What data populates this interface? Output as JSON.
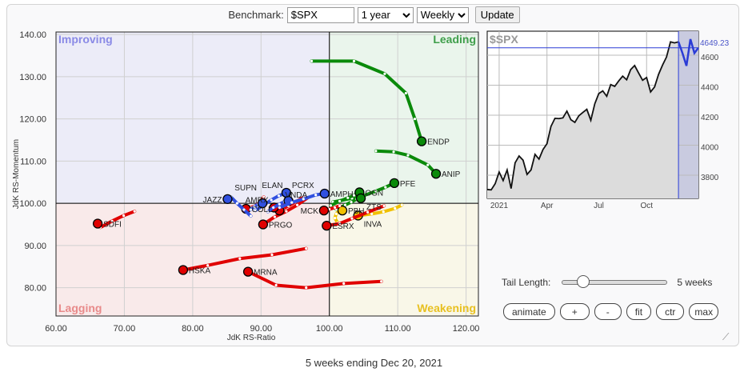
{
  "toolbar": {
    "benchmark_label": "Benchmark:",
    "benchmark_value": "$SPX",
    "period": "1 year",
    "frequency": "Weekly",
    "update_label": "Update"
  },
  "controls": {
    "tail_label": "Tail Length:",
    "tail_value": "5 weeks",
    "tail_fraction": 0.15,
    "buttons": [
      "animate",
      "+",
      "-",
      "fit",
      "ctr",
      "max"
    ]
  },
  "caption": "5 weeks ending Dec 20, 2021",
  "colors": {
    "leading": "#0a8a0a",
    "weakening": "#f0c000",
    "lagging": "#e00000",
    "improving": "#3050e0"
  },
  "chart_data": [
    {
      "type": "scatter",
      "title": "Relative Rotation Graph",
      "xlabel": "JdK RS-Ratio",
      "ylabel": "JdK RS-Momentum",
      "xlim": [
        60,
        121.8
      ],
      "ylim": [
        73.3,
        140.6
      ],
      "xticks": [
        60,
        70,
        80,
        90,
        100,
        110,
        120
      ],
      "yticks": [
        80,
        90,
        100,
        110,
        120,
        130,
        140
      ],
      "tick_labels_x": [
        "60.00",
        "70.00",
        "80.00",
        "90.00",
        "100.00",
        "110.00",
        "120.00"
      ],
      "tick_labels_y": [
        "80.00",
        "90.00",
        "100.00",
        "110.00",
        "120.00",
        "130.00",
        "140.00"
      ],
      "grid": true,
      "quadrants": {
        "improving": "Improving",
        "leading": "Leading",
        "lagging": "Lagging",
        "weakening": "Weakening"
      },
      "series": [
        {
          "name": "ENDP",
          "points": [
            [
              97.4,
              133.7
            ],
            [
              103.6,
              133.7
            ],
            [
              108.1,
              130.7
            ],
            [
              111.2,
              126.1
            ],
            [
              112.5,
              120
            ],
            [
              113.5,
              114.7
            ]
          ]
        },
        {
          "name": "ANIP",
          "points": [
            [
              106.8,
              112.4
            ],
            [
              109.4,
              112.2
            ],
            [
              111.5,
              111.4
            ],
            [
              114.4,
              109.1
            ],
            [
              115.6,
              107.0
            ]
          ]
        },
        {
          "name": "PFE",
          "points": [
            [
              100.5,
              100.3
            ],
            [
              103.3,
              101.2
            ],
            [
              105,
              101.8
            ],
            [
              106.8,
              102.9
            ],
            [
              108.2,
              103.8
            ],
            [
              109.5,
              104.8
            ]
          ]
        },
        {
          "name": "OGN",
          "points": [
            [
              100.2,
              99.5
            ],
            [
              101.5,
              100.5
            ],
            [
              102.7,
              101.3
            ],
            [
              103.6,
              101.9
            ],
            [
              104.4,
              102.6
            ]
          ]
        },
        {
          "name": "ZTS",
          "points": [
            [
              101,
              98.5
            ],
            [
              102.3,
              99.6
            ],
            [
              103.2,
              100.3
            ],
            [
              104,
              101
            ],
            [
              104.6,
              101.2
            ]
          ]
        },
        {
          "name": "PBH",
          "points": [
            [
              101.2,
              95.4
            ],
            [
              100.8,
              96.5
            ],
            [
              101,
              97.5
            ],
            [
              101.5,
              98.3
            ],
            [
              101.9,
              98.3
            ]
          ]
        },
        {
          "name": "INVA",
          "points": [
            [
              110.6,
              99.6
            ],
            [
              109.6,
              98.8
            ],
            [
              107.9,
              98
            ],
            [
              106.2,
              97.5
            ],
            [
              104.2,
              97.1
            ]
          ]
        },
        {
          "name": "ESRX",
          "points": [
            [
              108,
              99.4
            ],
            [
              105.6,
              97.9
            ],
            [
              103.3,
              96.4
            ],
            [
              101.5,
              95.2
            ],
            [
              99.6,
              94.7
            ]
          ]
        },
        {
          "name": "MCK",
          "points": [
            [
              101.5,
              99.4
            ],
            [
              100.8,
              99.0
            ],
            [
              100,
              98.6
            ],
            [
              99.2,
              98.3
            ]
          ]
        },
        {
          "name": "PRGO",
          "points": [
            [
              96.8,
              101.3
            ],
            [
              95.3,
              99.6
            ],
            [
              93.7,
              98.1
            ],
            [
              92,
              96.8
            ],
            [
              90.3,
              95
            ]
          ]
        },
        {
          "name": "COLL",
          "points": [
            [
              90.4,
              101.5
            ],
            [
              89.8,
              100.2
            ],
            [
              89.2,
              99.4
            ],
            [
              88.5,
              99
            ],
            [
              87.8,
              98.7
            ]
          ]
        },
        {
          "name": "VNDA",
          "points": [
            [
              96.2,
              101.4
            ],
            [
              95,
              100.3
            ],
            [
              94,
              99.4
            ],
            [
              93.2,
              98.7
            ],
            [
              92.7,
              98.3
            ]
          ]
        },
        {
          "name": "AMRX",
          "points": [
            [
              94.5,
              100.8
            ],
            [
              93.5,
              100.2
            ],
            [
              92.8,
              99.6
            ],
            [
              91.9,
              99
            ]
          ]
        },
        {
          "name": "JAZZ",
          "points": [
            [
              88.5,
              97
            ],
            [
              87.5,
              98.5
            ],
            [
              86.5,
              100
            ],
            [
              85.6,
              101.5
            ],
            [
              85.1,
              101
            ]
          ]
        },
        {
          "name": "PCRX",
          "points": [
            [
              89.2,
              98.3
            ],
            [
              90.4,
              99.6
            ],
            [
              91.5,
              100.8
            ],
            [
              92.6,
              101.8
            ],
            [
              93.7,
              102.5
            ]
          ]
        },
        {
          "name": "ELAN",
          "points": [
            [
              91,
              98
            ],
            [
              91.8,
              99
            ],
            [
              92.7,
              99.8
            ],
            [
              93.4,
              100.4
            ],
            [
              94,
              100.6
            ]
          ]
        },
        {
          "name": "SUPN",
          "points": [
            [
              88.5,
              98.5
            ],
            [
              89,
              99.2
            ],
            [
              89.6,
              99.8
            ],
            [
              90.2,
              100
            ]
          ]
        },
        {
          "name": "AMPH",
          "points": [
            [
              92.7,
              99
            ],
            [
              94.5,
              100.2
            ],
            [
              96.2,
              101
            ],
            [
              98,
              102
            ],
            [
              99.3,
              102.3
            ]
          ]
        },
        {
          "name": "SDFI",
          "points": [
            [
              71.5,
              98.1
            ],
            [
              69.9,
              97.1
            ],
            [
              68.2,
              95.8
            ],
            [
              66.5,
              94.3
            ],
            [
              66.1,
              95.2
            ]
          ]
        },
        {
          "name": "HSKA",
          "points": [
            [
              96.6,
              89.3
            ],
            [
              91.6,
              87.8
            ],
            [
              86.9,
              86.9
            ],
            [
              82.2,
              85.3
            ],
            [
              78.6,
              84.2
            ]
          ]
        },
        {
          "name": "MRNA",
          "points": [
            [
              107.6,
              81.5
            ],
            [
              102.1,
              81
            ],
            [
              96.6,
              80
            ],
            [
              92.2,
              80.6
            ],
            [
              88.1,
              83.8
            ]
          ]
        }
      ]
    },
    {
      "type": "line",
      "title": "$SPX",
      "last_value_label": "4649.23",
      "last_value": 4649.23,
      "ylim": [
        3645,
        4760
      ],
      "yticks": [
        3800,
        4000,
        4200,
        4400,
        4600
      ],
      "tick_labels_y": [
        "3800",
        "4000",
        "4200",
        "4400",
        "4600"
      ],
      "xtick_labels": [
        "2021",
        "Apr",
        "Jul",
        "Oct"
      ],
      "xtick_index": [
        3,
        15,
        28,
        40
      ],
      "highlight_last": 5,
      "values": [
        3704,
        3702,
        3743,
        3821,
        3764,
        3835,
        3711,
        3882,
        3928,
        3900,
        3805,
        3835,
        3939,
        3907,
        3971,
        4010,
        4125,
        4179,
        4177,
        4182,
        4227,
        4170,
        4152,
        4196,
        4218,
        4239,
        4166,
        4276,
        4344,
        4362,
        4326,
        4404,
        4392,
        4428,
        4460,
        4436,
        4504,
        4531,
        4481,
        4433,
        4451,
        4355,
        4388,
        4472,
        4534,
        4588,
        4689,
        4682,
        4689,
        4614,
        4529,
        4707,
        4614,
        4649
      ]
    }
  ]
}
